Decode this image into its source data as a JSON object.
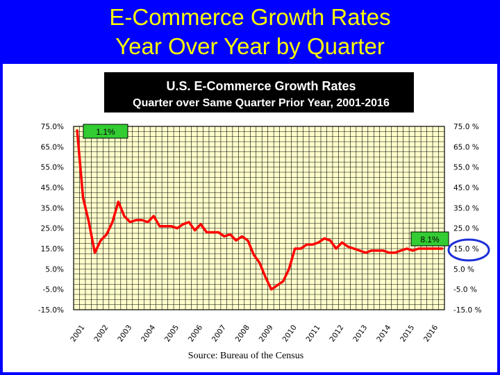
{
  "slide": {
    "title_line1": "E-Commerce Growth Rates",
    "title_line2": "Year Over Year by Quarter"
  },
  "colors": {
    "background": "#0000ff",
    "title": "#ffff00",
    "line": "#ff0000",
    "callout_fill": "#33cc33",
    "highlight_circle": "#1c2fd6",
    "chart_title_bg": "#000000"
  },
  "chart_data": {
    "type": "line",
    "title": "U.S. E-Commerce Growth Rates",
    "subtitle": "Quarter over Same Quarter Prior Year, 2001-2016",
    "source": "Source: Bureau of the Census",
    "ylim": [
      -15,
      75
    ],
    "grid": true,
    "y_ticks_left": [
      "75.0%",
      "65.0%",
      "55.0%",
      "45.0%",
      "35.0%",
      "25.0%",
      "15.0%",
      "5.0%",
      "-5.0%",
      "-15.0%"
    ],
    "y_ticks_right": [
      "75.0 %",
      "65.0 %",
      "55.0 %",
      "45.0 %",
      "35.0 %",
      "25.0 %",
      "15.0 %",
      "5.0 %",
      "-5.0 %",
      "-15.0 %"
    ],
    "x_ticks": [
      "2001",
      "2002",
      "2003",
      "2004",
      "2005",
      "2006",
      "2007",
      "2008",
      "2009",
      "2010",
      "2011",
      "2012",
      "2013",
      "2014",
      "2015",
      "2016"
    ],
    "annotations": [
      "1.1%",
      "8.1%"
    ],
    "series": [
      {
        "x": [
          2001.0,
          2001.25,
          2001.5,
          2001.75,
          2002.0,
          2002.25,
          2002.5,
          2002.75,
          2003.0,
          2003.25,
          2003.5,
          2003.75,
          2004.0,
          2004.25,
          2004.5,
          2004.75,
          2005.0,
          2005.25,
          2005.5,
          2005.75,
          2006.0,
          2006.25,
          2006.5,
          2006.75,
          2007.0,
          2007.25,
          2007.5,
          2007.75,
          2008.0,
          2008.25,
          2008.5,
          2008.75,
          2009.0,
          2009.25,
          2009.5,
          2009.75,
          2010.0,
          2010.25,
          2010.5,
          2010.75,
          2011.0,
          2011.25,
          2011.5,
          2011.75,
          2012.0,
          2012.25,
          2012.5,
          2012.75,
          2013.0,
          2013.25,
          2013.5,
          2013.75,
          2014.0,
          2014.25,
          2014.5,
          2014.75,
          2015.0,
          2015.25,
          2015.5,
          2015.75,
          2016.0,
          2016.25,
          2016.5
        ],
        "values": [
          73,
          40,
          28,
          13,
          19,
          22,
          28,
          38,
          31,
          28,
          29,
          29,
          28,
          31,
          26,
          26,
          26,
          25,
          27,
          28,
          24,
          27,
          23,
          23,
          23,
          21,
          22,
          19,
          21,
          19,
          12,
          8,
          1,
          -5,
          -3,
          -1,
          5,
          15,
          15,
          17,
          17,
          18,
          20,
          19,
          15,
          18,
          16,
          15,
          14,
          13,
          14,
          14,
          14,
          13,
          13,
          14,
          15,
          14,
          15,
          15,
          15,
          15,
          15
        ]
      }
    ]
  }
}
